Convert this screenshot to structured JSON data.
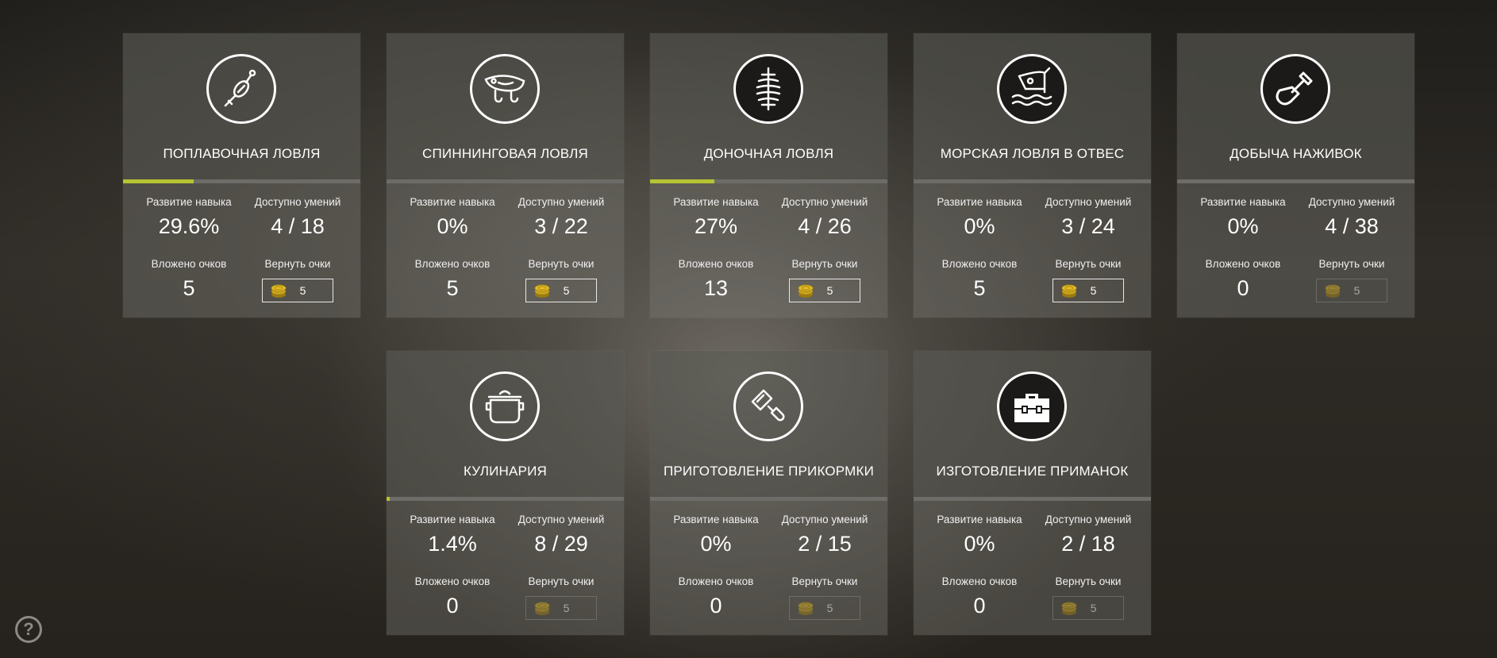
{
  "labels": {
    "skill_progress": "Развитие навыка",
    "available_skills": "Доступно умений",
    "points_invested": "Вложено очков",
    "refund_points": "Вернуть очки"
  },
  "accent_color": "#b6c332",
  "help": {
    "icon": "question-icon",
    "text": "?"
  },
  "cards": [
    {
      "title": "ПОПЛАВОЧНАЯ ЛОВЛЯ",
      "icon": "float-icon",
      "progress": "29.6%",
      "progress_fraction": 0.296,
      "available": "4 / 18",
      "invested": "5",
      "refund": "5",
      "refund_enabled": true
    },
    {
      "title": "СПИННИНГОВАЯ ЛОВЛЯ",
      "icon": "lure-icon",
      "progress": "0%",
      "progress_fraction": 0,
      "available": "3 / 22",
      "invested": "5",
      "refund": "5",
      "refund_enabled": true
    },
    {
      "title": "ДОНОЧНАЯ ЛОВЛЯ",
      "icon": "feeder-icon",
      "progress": "27%",
      "progress_fraction": 0.27,
      "available": "4 / 26",
      "invested": "13",
      "refund": "5",
      "refund_enabled": true
    },
    {
      "title": "МОРСКАЯ ЛОВЛЯ В ОТВЕС",
      "icon": "sea-fishing-icon",
      "progress": "0%",
      "progress_fraction": 0,
      "available": "3 / 24",
      "invested": "5",
      "refund": "5",
      "refund_enabled": true
    },
    {
      "title": "ДОБЫЧА НАЖИВОК",
      "icon": "shovel-icon",
      "progress": "0%",
      "progress_fraction": 0,
      "available": "4 / 38",
      "invested": "0",
      "refund": "5",
      "refund_enabled": false
    },
    {
      "title": "КУЛИНАРИЯ",
      "icon": "pot-icon",
      "progress": "1.4%",
      "progress_fraction": 0.014,
      "available": "8 / 29",
      "invested": "0",
      "refund": "5",
      "refund_enabled": false
    },
    {
      "title": "ПРИГОТОВЛЕНИЕ ПРИКОРМКИ",
      "icon": "mixer-icon",
      "progress": "0%",
      "progress_fraction": 0,
      "available": "2 / 15",
      "invested": "0",
      "refund": "5",
      "refund_enabled": false
    },
    {
      "title": "ИЗГОТОВЛЕНИЕ ПРИМАНОК",
      "icon": "toolbox-icon",
      "progress": "0%",
      "progress_fraction": 0,
      "available": "2 / 18",
      "invested": "0",
      "refund": "5",
      "refund_enabled": false
    }
  ]
}
